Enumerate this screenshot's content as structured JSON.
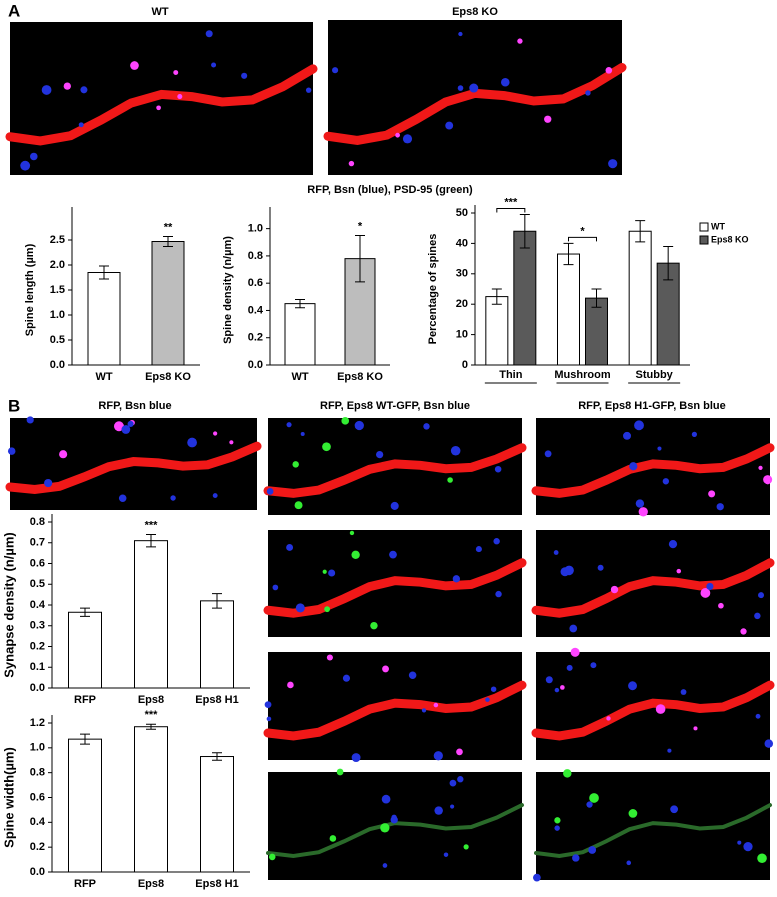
{
  "panel_a": {
    "label": "A",
    "image_titles": [
      "WT",
      "Eps8 KO"
    ],
    "caption": "RFP, Bsn (blue), PSD-95 (green)"
  },
  "panel_b": {
    "label": "B",
    "image_titles": [
      "RFP, Bsn blue",
      "RFP, Eps8 WT-GFP, Bsn blue",
      "RFP, Eps8 H1-GFP, Bsn blue"
    ]
  },
  "chart_data": [
    {
      "type": "bar",
      "ylabel": "Spine length (µm)",
      "categories": [
        "WT",
        "Eps8 KO"
      ],
      "values": [
        1.85,
        2.47
      ],
      "errors": [
        0.13,
        0.1
      ],
      "colors": [
        "#ffffff",
        "#bdbdbd"
      ],
      "annotations": [
        {
          "text": "**",
          "at": "Eps8 KO"
        }
      ],
      "ylim": [
        0,
        3
      ],
      "yticks": [
        {
          "value": 0,
          "label": "0.0"
        },
        {
          "value": 0.5,
          "label": "0.5"
        },
        {
          "value": 1,
          "label": "1.0"
        },
        {
          "value": 1.5,
          "label": "1.5"
        },
        {
          "value": 2,
          "label": "2.0"
        },
        {
          "value": 2.5,
          "label": "2.5"
        }
      ]
    },
    {
      "type": "bar",
      "ylabel": "Spine density (n/µm)",
      "categories": [
        "WT",
        "Eps8 KO"
      ],
      "values": [
        0.45,
        0.78
      ],
      "errors": [
        0.03,
        0.17
      ],
      "colors": [
        "#ffffff",
        "#bdbdbd"
      ],
      "annotations": [
        {
          "text": "*",
          "at": "Eps8 KO"
        }
      ],
      "ylim": [
        0,
        1.1
      ],
      "yticks": [
        {
          "value": 0,
          "label": "0.0"
        },
        0.2,
        0.4,
        0.6,
        0.8,
        {
          "value": 1,
          "label": "1.0"
        }
      ]
    },
    {
      "type": "grouped_bar",
      "ylabel": "Percentage of spines",
      "categories": [
        "Thin",
        "Mushroom",
        "Stubby"
      ],
      "series": [
        {
          "name": "WT",
          "color": "#ffffff",
          "values": [
            22.5,
            36.5,
            44
          ],
          "errors": [
            2.5,
            3.5,
            3.5
          ]
        },
        {
          "name": "Eps8 KO",
          "color": "#5a5a5a",
          "values": [
            44,
            22,
            33.5
          ],
          "errors": [
            5.5,
            3,
            5.5
          ]
        }
      ],
      "annotations": [
        {
          "text": "***",
          "at": "Thin"
        },
        {
          "text": "*",
          "at": "Mushroom"
        }
      ],
      "ylim": [
        0,
        50
      ],
      "yticks": [
        0,
        10,
        20,
        30,
        40,
        50
      ]
    },
    {
      "type": "bar",
      "ylabel": "Synapse density (n/µm)",
      "categories": [
        "RFP",
        "Eps8",
        "Eps8 H1"
      ],
      "values": [
        0.365,
        0.71,
        0.42
      ],
      "errors": [
        0.02,
        0.03,
        0.035
      ],
      "colors": [
        "#ffffff",
        "#ffffff",
        "#ffffff"
      ],
      "annotations": [
        {
          "text": "***",
          "at": "Eps8"
        }
      ],
      "ylim": [
        0,
        0.8
      ],
      "yticks": [
        {
          "value": 0,
          "label": "0.0"
        },
        0.1,
        0.2,
        0.3,
        0.4,
        0.5,
        0.6,
        0.7,
        0.8
      ]
    },
    {
      "type": "bar",
      "ylabel": "Spine width(µm)",
      "categories": [
        "RFP",
        "Eps8",
        "Eps8 H1"
      ],
      "values": [
        1.07,
        1.17,
        0.93
      ],
      "errors": [
        0.04,
        0.02,
        0.03
      ],
      "colors": [
        "#ffffff",
        "#ffffff",
        "#ffffff"
      ],
      "annotations": [
        {
          "text": "***",
          "at": "Eps8"
        }
      ],
      "ylim": [
        0,
        1.2
      ],
      "yticks": [
        {
          "value": 0,
          "label": "0.0"
        },
        0.2,
        0.4,
        0.6,
        0.8,
        {
          "value": 1,
          "label": "1.0"
        },
        1.2
      ]
    }
  ]
}
